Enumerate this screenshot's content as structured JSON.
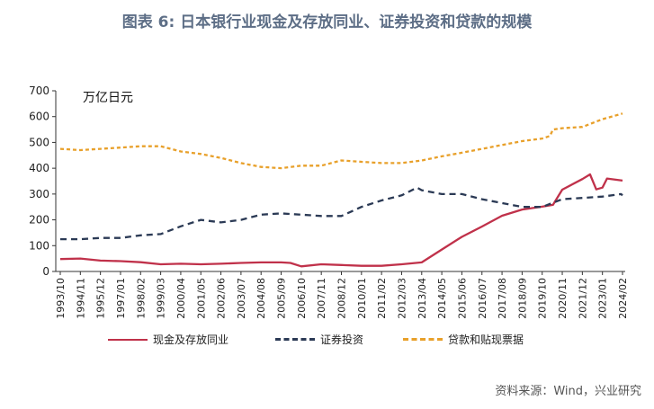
{
  "title": "图表 6:  日本银行业现金及存放同业、证券投资和贷款的规模",
  "source": "资料来源：Wind，兴业研究",
  "chart_data": {
    "type": "line",
    "unit_label": "万亿日元",
    "ylim": [
      0,
      700
    ],
    "yticks": [
      0,
      100,
      200,
      300,
      400,
      500,
      600,
      700
    ],
    "grid": false,
    "legend_position": "bottom",
    "x_tick_labels": [
      "1993/10",
      "1994/11",
      "1995/12",
      "1997/01",
      "1998/02",
      "1999/03",
      "2000/04",
      "2001/05",
      "2002/06",
      "2003/07",
      "2004/08",
      "2005/09",
      "2006/10",
      "2007/11",
      "2008/12",
      "2010/01",
      "2011/02",
      "2012/03",
      "2013/04",
      "2014/05",
      "2015/06",
      "2016/07",
      "2017/08",
      "2018/09",
      "2019/10",
      "2020/11",
      "2021/12",
      "2023/01",
      "2024/02"
    ],
    "series": [
      {
        "name": "现金及存放同业",
        "color": "#c0314a",
        "style": "solid",
        "points": [
          [
            "1993/10",
            48
          ],
          [
            "1994/11",
            50
          ],
          [
            "1995/12",
            42
          ],
          [
            "1997/01",
            40
          ],
          [
            "1998/02",
            36
          ],
          [
            "1999/03",
            28
          ],
          [
            "2000/04",
            30
          ],
          [
            "2001/05",
            28
          ],
          [
            "2002/06",
            30
          ],
          [
            "2003/07",
            33
          ],
          [
            "2004/08",
            35
          ],
          [
            "2005/09",
            35
          ],
          [
            "2006/03",
            33
          ],
          [
            "2006/10",
            20
          ],
          [
            "2007/11",
            28
          ],
          [
            "2008/12",
            25
          ],
          [
            "2010/01",
            22
          ],
          [
            "2011/02",
            22
          ],
          [
            "2012/03",
            28
          ],
          [
            "2013/04",
            35
          ],
          [
            "2014/05",
            85
          ],
          [
            "2015/06",
            134
          ],
          [
            "2016/07",
            174
          ],
          [
            "2017/08",
            216
          ],
          [
            "2018/09",
            240
          ],
          [
            "2019/10",
            251
          ],
          [
            "2020/05",
            258
          ],
          [
            "2020/11",
            317
          ],
          [
            "2021/12",
            358
          ],
          [
            "2022/05",
            376
          ],
          [
            "2022/09",
            318
          ],
          [
            "2023/01",
            325
          ],
          [
            "2023/04",
            360
          ],
          [
            "2024/02",
            352
          ]
        ]
      },
      {
        "name": "证券投资",
        "color": "#2b3a55",
        "style": "dash",
        "points": [
          [
            "1993/10",
            125
          ],
          [
            "1994/11",
            125
          ],
          [
            "1995/12",
            130
          ],
          [
            "1997/01",
            130
          ],
          [
            "1998/02",
            140
          ],
          [
            "1999/03",
            145
          ],
          [
            "2000/04",
            175
          ],
          [
            "2001/05",
            200
          ],
          [
            "2002/06",
            190
          ],
          [
            "2003/07",
            200
          ],
          [
            "2004/08",
            220
          ],
          [
            "2005/09",
            225
          ],
          [
            "2006/10",
            220
          ],
          [
            "2007/11",
            215
          ],
          [
            "2008/12",
            215
          ],
          [
            "2010/01",
            250
          ],
          [
            "2011/02",
            275
          ],
          [
            "2012/03",
            295
          ],
          [
            "2013/01",
            325
          ],
          [
            "2013/04",
            315
          ],
          [
            "2014/05",
            300
          ],
          [
            "2015/06",
            300
          ],
          [
            "2016/07",
            280
          ],
          [
            "2017/08",
            265
          ],
          [
            "2018/09",
            250
          ],
          [
            "2019/10",
            250
          ],
          [
            "2020/11",
            280
          ],
          [
            "2021/12",
            285
          ],
          [
            "2023/01",
            290
          ],
          [
            "2024/01",
            300
          ],
          [
            "2024/02",
            295
          ]
        ]
      },
      {
        "name": "贷款和贴现票据",
        "color": "#e8a02a",
        "style": "dot",
        "points": [
          [
            "1993/10",
            475
          ],
          [
            "1994/11",
            470
          ],
          [
            "1995/12",
            475
          ],
          [
            "1997/01",
            480
          ],
          [
            "1998/02",
            485
          ],
          [
            "1999/03",
            485
          ],
          [
            "2000/04",
            465
          ],
          [
            "2001/05",
            455
          ],
          [
            "2002/06",
            440
          ],
          [
            "2003/07",
            420
          ],
          [
            "2004/08",
            405
          ],
          [
            "2005/09",
            400
          ],
          [
            "2006/10",
            410
          ],
          [
            "2007/11",
            410
          ],
          [
            "2008/12",
            430
          ],
          [
            "2010/01",
            425
          ],
          [
            "2011/02",
            420
          ],
          [
            "2012/03",
            420
          ],
          [
            "2013/04",
            430
          ],
          [
            "2014/05",
            446
          ],
          [
            "2015/06",
            460
          ],
          [
            "2016/07",
            475
          ],
          [
            "2017/08",
            490
          ],
          [
            "2018/09",
            505
          ],
          [
            "2019/10",
            515
          ],
          [
            "2020/03",
            525
          ],
          [
            "2020/05",
            550
          ],
          [
            "2020/11",
            555
          ],
          [
            "2021/12",
            560
          ],
          [
            "2023/01",
            590
          ],
          [
            "2024/02",
            612
          ]
        ]
      }
    ]
  }
}
